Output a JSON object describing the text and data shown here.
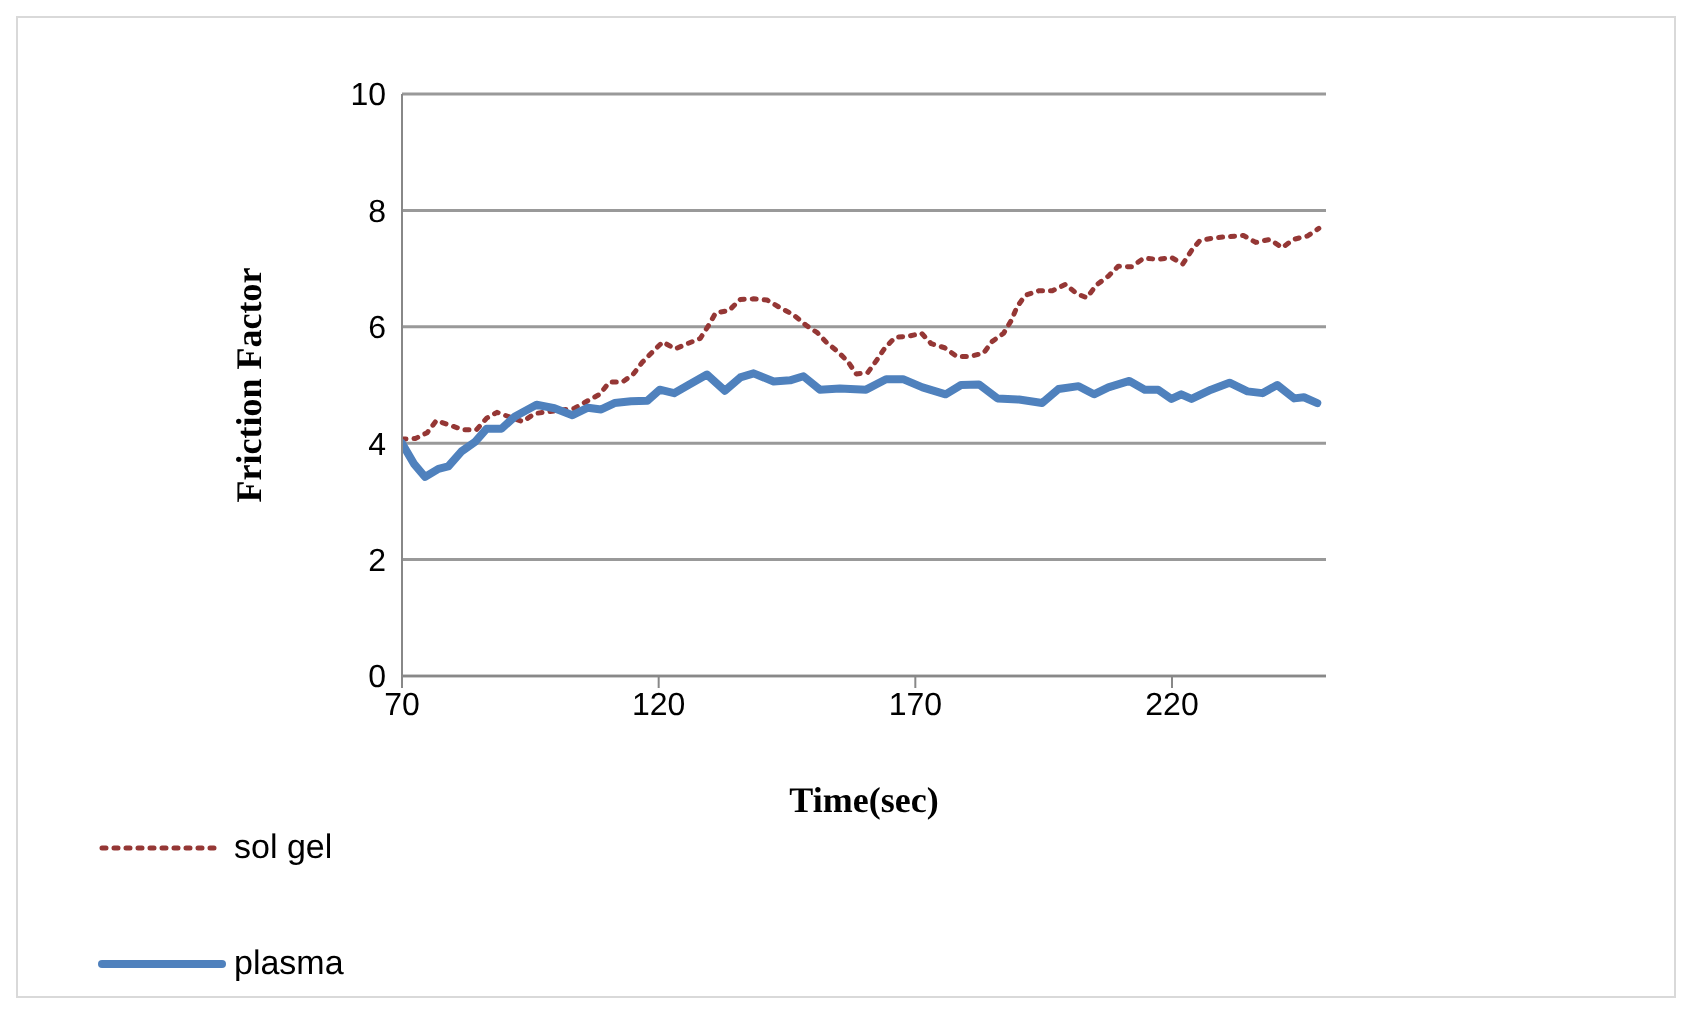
{
  "chart_data": {
    "type": "line",
    "xlabel": "Time(sec)",
    "ylabel": "Friction Factor",
    "xlim": [
      70,
      250
    ],
    "xticks": [
      70,
      120,
      170,
      220
    ],
    "ylim": [
      0,
      10
    ],
    "yticks": [
      0,
      2,
      4,
      6,
      8,
      10
    ],
    "grid": "y",
    "legend": "bottom left",
    "marker": "none",
    "series": [
      {
        "name": "sol gel",
        "color": "#953735",
        "line_style": "dotted",
        "x": [
          70,
          72.6,
          74.9,
          76.7,
          79.3,
          81.9,
          84.5,
          86.5,
          88.5,
          93.5,
          95.9,
          103.6,
          106.2,
          108.5,
          110.4,
          112.9,
          115,
          116.8,
          118.8,
          120.8,
          123.2,
          125.6,
          128.1,
          129.7,
          131.1,
          133.7,
          135.9,
          138.5,
          141.1,
          143.6,
          146.2,
          148.8,
          150.9,
          152.7,
          154.8,
          156.8,
          158.5,
          160.7,
          162.5,
          164.1,
          166.1,
          168.8,
          171.2,
          173.1,
          175.7,
          178.1,
          180.7,
          183.3,
          185,
          187.2,
          188.7,
          189.8,
          191.4,
          194.1,
          196.7,
          199.3,
          201.4,
          203.4,
          205.3,
          207.6,
          209.5,
          212.1,
          214.5,
          217.2,
          219.9,
          222.1,
          223.8,
          225.4,
          228.3,
          231.1,
          233.9,
          236.3,
          239,
          241.5,
          243.6,
          246.4,
          248.6
        ],
        "values": [
          4.07,
          4.08,
          4.18,
          4.39,
          4.31,
          4.23,
          4.23,
          4.43,
          4.53,
          4.37,
          4.51,
          4.6,
          4.73,
          4.84,
          5.05,
          5.05,
          5.18,
          5.39,
          5.57,
          5.74,
          5.62,
          5.71,
          5.8,
          6.02,
          6.24,
          6.28,
          6.47,
          6.48,
          6.46,
          6.33,
          6.21,
          6.02,
          5.9,
          5.73,
          5.58,
          5.41,
          5.19,
          5.21,
          5.43,
          5.64,
          5.82,
          5.84,
          5.89,
          5.71,
          5.64,
          5.49,
          5.49,
          5.55,
          5.75,
          5.89,
          6.11,
          6.34,
          6.54,
          6.62,
          6.62,
          6.73,
          6.57,
          6.5,
          6.72,
          6.87,
          7.04,
          7.03,
          7.18,
          7.16,
          7.19,
          7.08,
          7.31,
          7.48,
          7.53,
          7.55,
          7.57,
          7.45,
          7.5,
          7.36,
          7.5,
          7.56,
          7.69
        ]
      },
      {
        "name": "plasma",
        "color": "#4f81bd",
        "line_style": "solid",
        "x": [
          70,
          72.3,
          74.5,
          77.1,
          79,
          81.6,
          84.2,
          86.5,
          89.4,
          92,
          96.2,
          99.7,
          103.2,
          106.2,
          108.8,
          111.4,
          114.6,
          117.8,
          120.2,
          123,
          125.8,
          129.4,
          132.9,
          135.9,
          138.5,
          142.4,
          145.6,
          148.2,
          151.4,
          155.3,
          160.4,
          164.3,
          167.6,
          171.4,
          175.9,
          178.9,
          182.4,
          186,
          190.2,
          194.7,
          197.9,
          201.8,
          204.8,
          207.6,
          211.7,
          214.7,
          217.3,
          219.9,
          221.8,
          223.8,
          227.6,
          231.2,
          234.7,
          237.6,
          240.5,
          243.8,
          245.7,
          248.3
        ],
        "values": [
          4,
          3.65,
          3.42,
          3.56,
          3.6,
          3.86,
          4.02,
          4.25,
          4.25,
          4.46,
          4.66,
          4.6,
          4.48,
          4.61,
          4.58,
          4.69,
          4.72,
          4.73,
          4.92,
          4.86,
          5,
          5.18,
          4.9,
          5.13,
          5.2,
          5.06,
          5.08,
          5.15,
          4.92,
          4.94,
          4.92,
          5.1,
          5.1,
          4.96,
          4.84,
          5,
          5.01,
          4.77,
          4.75,
          4.69,
          4.93,
          4.98,
          4.84,
          4.96,
          5.07,
          4.92,
          4.92,
          4.76,
          4.84,
          4.76,
          4.92,
          5.04,
          4.89,
          4.86,
          5,
          4.77,
          4.79,
          4.69
        ]
      }
    ]
  }
}
